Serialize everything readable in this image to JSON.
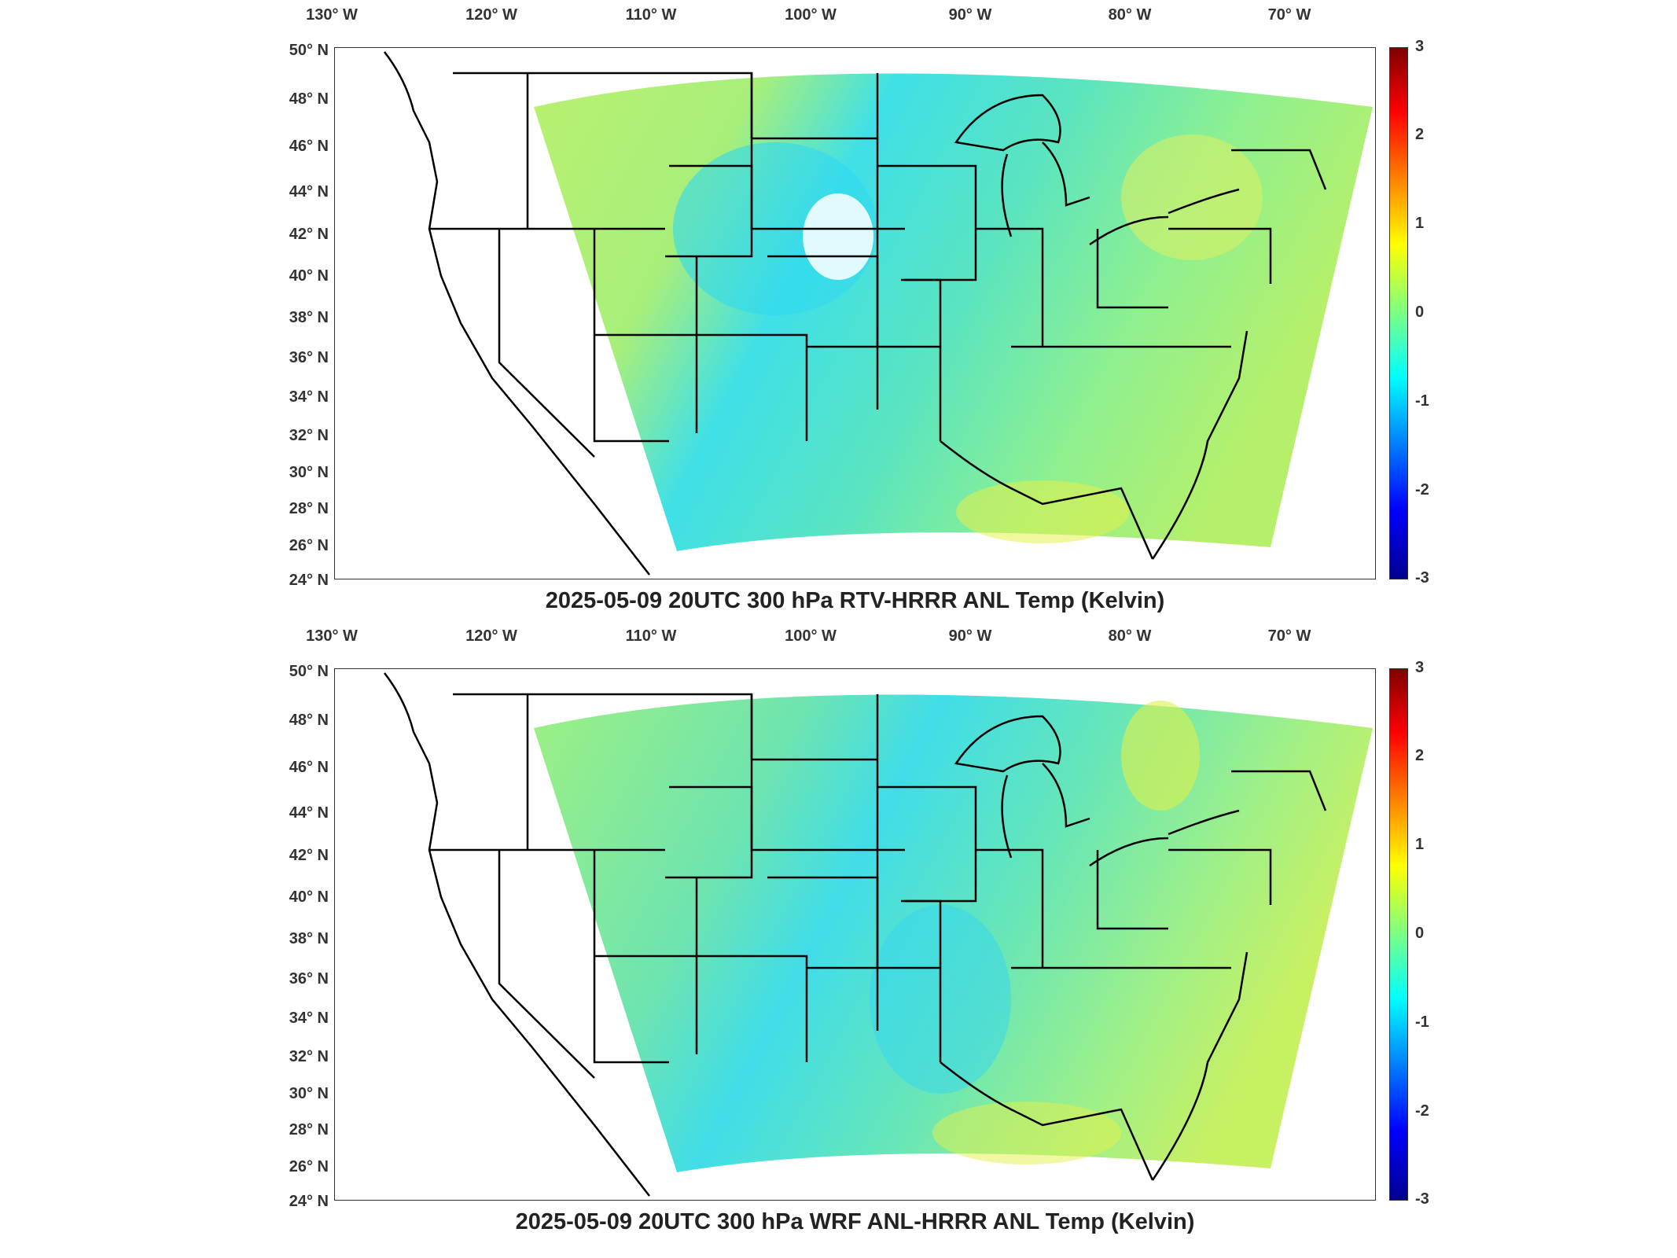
{
  "lon_ticks": [
    "130° W",
    "120° W",
    "110° W",
    "100° W",
    "90° W",
    "80° W",
    "70° W"
  ],
  "lat_ticks": [
    "50° N",
    "48° N",
    "46° N",
    "44° N",
    "42° N",
    "40° N",
    "38° N",
    "36° N",
    "34° N",
    "32° N",
    "30° N",
    "28° N",
    "26° N",
    "24° N"
  ],
  "colorbar": {
    "ticks": [
      "3",
      "2",
      "1",
      "0",
      "-1",
      "-2",
      "-3"
    ],
    "min": -3,
    "max": 3,
    "colormap": "jet",
    "colors": [
      "#00008f",
      "#0000ff",
      "#00ffff",
      "#ffff00",
      "#ff0000",
      "#800000"
    ]
  },
  "panels": [
    {
      "title": "2025-05-09 20UTC 300 hPa RTV-HRRR ANL Temp (Kelvin)",
      "field_color": "#55e0b0"
    },
    {
      "title": "2025-05-09 20UTC 300 hPa WRF ANL-HRRR ANL Temp (Kelvin)",
      "field_color": "#5ee0ad"
    }
  ],
  "map": {
    "projection": "Lambert Conformal",
    "extent_lon": [
      -130,
      -66
    ],
    "extent_lat": [
      24,
      50
    ]
  }
}
